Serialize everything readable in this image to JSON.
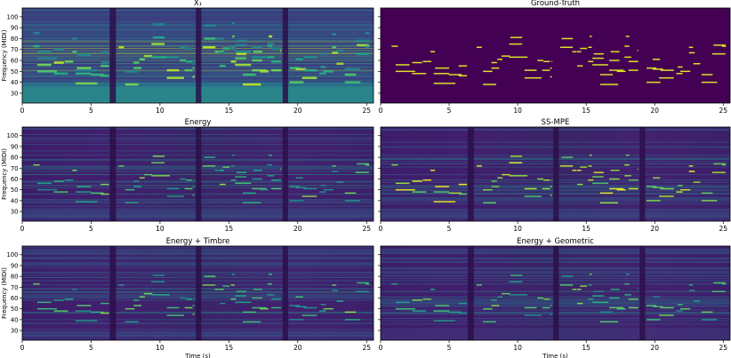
{
  "chart_data": [
    {
      "type": "heatmap",
      "title": "X₁",
      "xlabel": "",
      "ylabel": "Frequency (MIDI)",
      "xlim": [
        0,
        25.5
      ],
      "ylim": [
        21,
        108
      ],
      "xticks": [
        0,
        5,
        10,
        15,
        20,
        25
      ],
      "yticks": [
        30,
        40,
        50,
        60,
        70,
        80,
        90,
        100
      ],
      "colormap": "viridis",
      "show_yticklabels": true
    },
    {
      "type": "heatmap",
      "title": "Ground-Truth",
      "xlabel": "",
      "ylabel": "",
      "xlim": [
        0,
        25.5
      ],
      "ylim": [
        21,
        108
      ],
      "xticks": [
        0,
        5,
        10,
        15,
        20,
        25
      ],
      "yticks": [
        30,
        40,
        50,
        60,
        70,
        80,
        90,
        100
      ],
      "colormap": "viridis",
      "show_yticklabels": false
    },
    {
      "type": "heatmap",
      "title": "Energy",
      "xlabel": "",
      "ylabel": "Frequency (MIDI)",
      "xlim": [
        0,
        25.5
      ],
      "ylim": [
        21,
        108
      ],
      "xticks": [
        0,
        5,
        10,
        15,
        20,
        25
      ],
      "yticks": [
        30,
        40,
        50,
        60,
        70,
        80,
        90,
        100
      ],
      "colormap": "viridis",
      "show_yticklabels": true
    },
    {
      "type": "heatmap",
      "title": "SS-MPE",
      "xlabel": "",
      "ylabel": "",
      "xlim": [
        0,
        25.5
      ],
      "ylim": [
        21,
        108
      ],
      "xticks": [
        0,
        5,
        10,
        15,
        20,
        25
      ],
      "yticks": [
        30,
        40,
        50,
        60,
        70,
        80,
        90,
        100
      ],
      "colormap": "viridis",
      "show_yticklabels": false
    },
    {
      "type": "heatmap",
      "title": "Energy + Timbre",
      "xlabel": "Time (s)",
      "ylabel": "Frequency (MIDI)",
      "xlim": [
        0,
        25.5
      ],
      "ylim": [
        21,
        108
      ],
      "xticks": [
        0,
        5,
        10,
        15,
        20,
        25
      ],
      "yticks": [
        30,
        40,
        50,
        60,
        70,
        80,
        90,
        100
      ],
      "colormap": "viridis",
      "show_yticklabels": true
    },
    {
      "type": "heatmap",
      "title": "Energy + Geometric",
      "xlabel": "Time (s)",
      "ylabel": "",
      "xlim": [
        0,
        25.5
      ],
      "ylim": [
        21,
        108
      ],
      "xticks": [
        0,
        5,
        10,
        15,
        20,
        25
      ],
      "yticks": [
        30,
        40,
        50,
        60,
        70,
        80,
        90,
        100
      ],
      "colormap": "viridis",
      "show_yticklabels": false
    }
  ]
}
